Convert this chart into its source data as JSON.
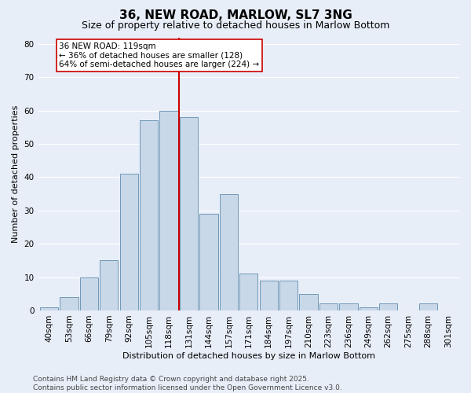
{
  "title": "36, NEW ROAD, MARLOW, SL7 3NG",
  "subtitle": "Size of property relative to detached houses in Marlow Bottom",
  "xlabel": "Distribution of detached houses by size in Marlow Bottom",
  "ylabel": "Number of detached properties",
  "categories": [
    "40sqm",
    "53sqm",
    "66sqm",
    "79sqm",
    "92sqm",
    "105sqm",
    "118sqm",
    "131sqm",
    "144sqm",
    "157sqm",
    "171sqm",
    "184sqm",
    "197sqm",
    "210sqm",
    "223sqm",
    "236sqm",
    "249sqm",
    "262sqm",
    "275sqm",
    "288sqm",
    "301sqm"
  ],
  "values": [
    1,
    4,
    10,
    15,
    41,
    57,
    60,
    58,
    29,
    35,
    11,
    9,
    9,
    5,
    2,
    2,
    1,
    2,
    0,
    2,
    0
  ],
  "bar_color": "#c8d8e8",
  "bar_edge_color": "#7098b8",
  "bg_color": "#e8eef8",
  "grid_color": "#ffffff",
  "vline_bin": 6,
  "vline_color": "#cc0000",
  "annotation_line1": "36 NEW ROAD: 119sqm",
  "annotation_line2": "← 36% of detached houses are smaller (128)",
  "annotation_line3": "64% of semi-detached houses are larger (224) →",
  "annotation_box_color": "#ffffff",
  "annotation_box_edge": "#cc0000",
  "ylim": [
    0,
    82
  ],
  "yticks": [
    0,
    10,
    20,
    30,
    40,
    50,
    60,
    70,
    80
  ],
  "footer": "Contains HM Land Registry data © Crown copyright and database right 2025.\nContains public sector information licensed under the Open Government Licence v3.0.",
  "title_fontsize": 11,
  "subtitle_fontsize": 9,
  "axis_label_fontsize": 8,
  "tick_fontsize": 7.5,
  "annotation_fontsize": 7.5,
  "footer_fontsize": 6.5
}
